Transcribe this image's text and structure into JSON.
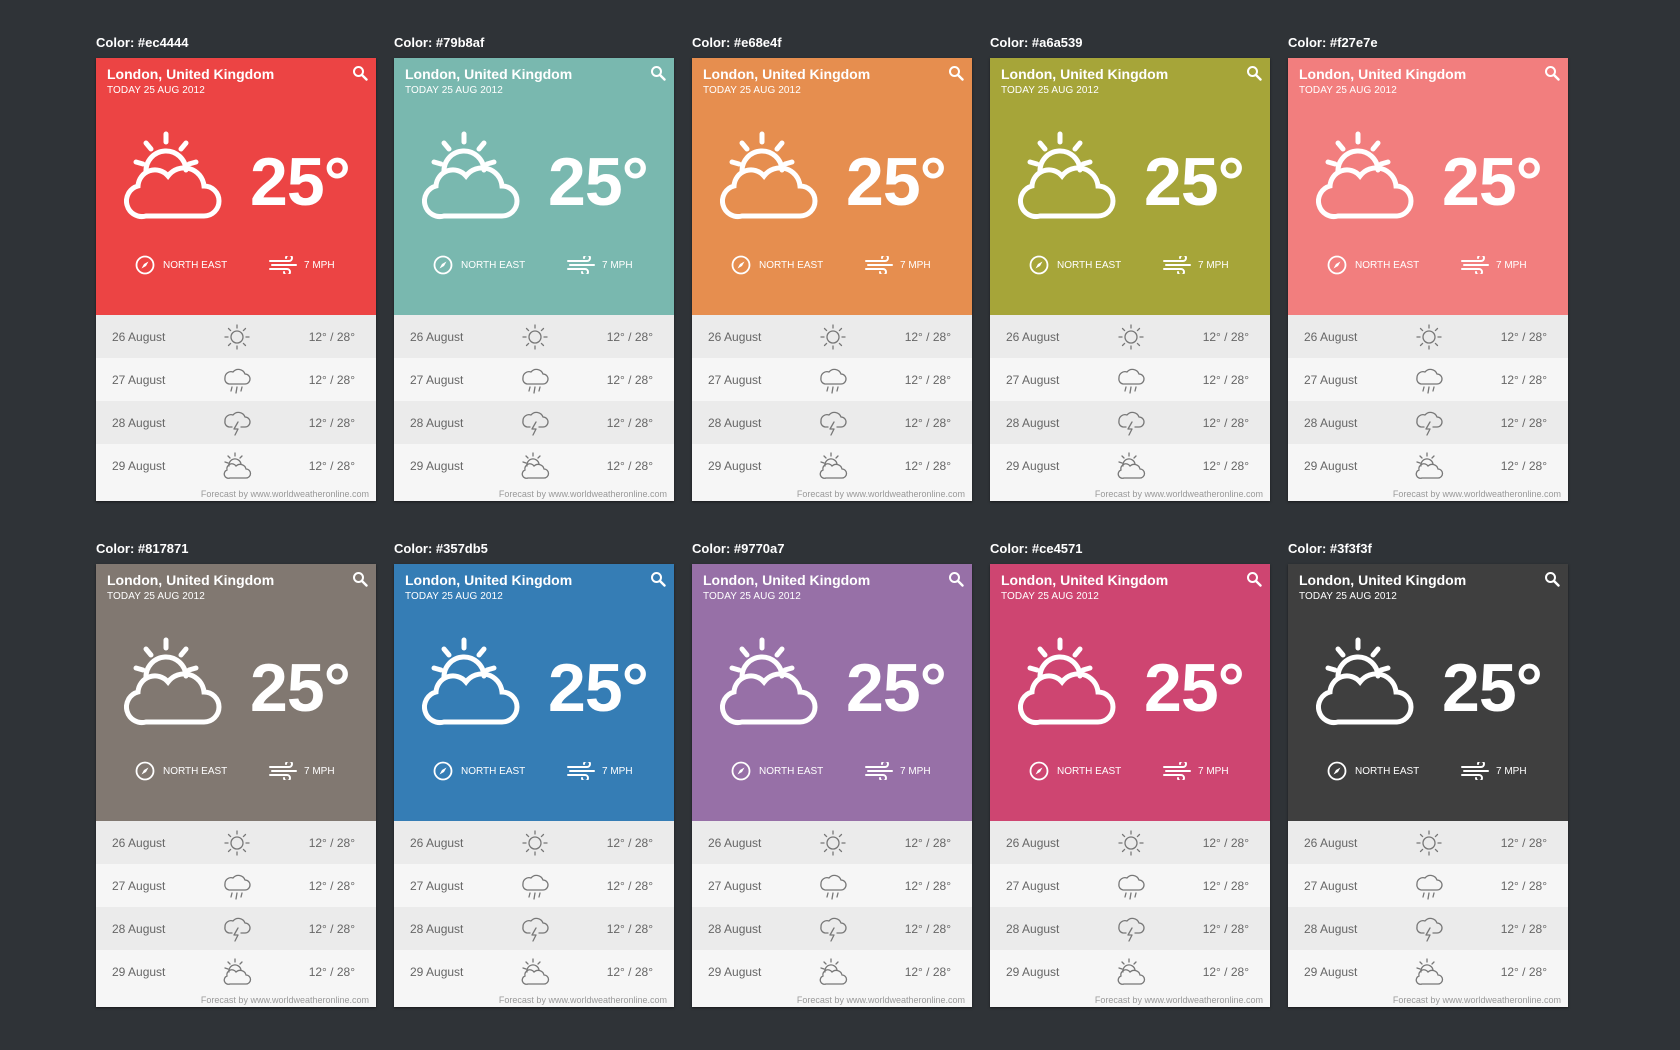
{
  "cards": [
    {
      "label": "Color: #ec4444",
      "color": "#ec4444"
    },
    {
      "label": "Color: #79b8af",
      "color": "#79b8af"
    },
    {
      "label": "Color: #e68e4f",
      "color": "#e68e4f"
    },
    {
      "label": "Color: #a6a539",
      "color": "#a6a539"
    },
    {
      "label": "Color: #f27e7e",
      "color": "#f27e7e"
    },
    {
      "label": "Color: #817871",
      "color": "#817871"
    },
    {
      "label": "Color: #357db5",
      "color": "#357db5"
    },
    {
      "label": "Color: #9770a7",
      "color": "#9770a7"
    },
    {
      "label": "Color: #ce4571",
      "color": "#ce4571"
    },
    {
      "label": "Color: #3f3f3f",
      "color": "#3f3f3f"
    }
  ],
  "widget": {
    "city": "London, United Kingdom",
    "date": "TODAY 25 AUG 2012",
    "temperature": "25°",
    "current_icon": "partly-cloudy-icon",
    "wind_direction": "NORTH EAST",
    "wind_speed": "7 MPH",
    "forecast": [
      {
        "day": "26 August",
        "icon": "sun-icon",
        "range": "12° / 28°"
      },
      {
        "day": "27 August",
        "icon": "rain-icon",
        "range": "12° / 28°"
      },
      {
        "day": "28 August",
        "icon": "storm-icon",
        "range": "12° / 28°"
      },
      {
        "day": "29 August",
        "icon": "partly-cloudy-icon",
        "range": "12° / 28°"
      }
    ],
    "footer": "Forecast by www.worldweatheronline.com"
  }
}
